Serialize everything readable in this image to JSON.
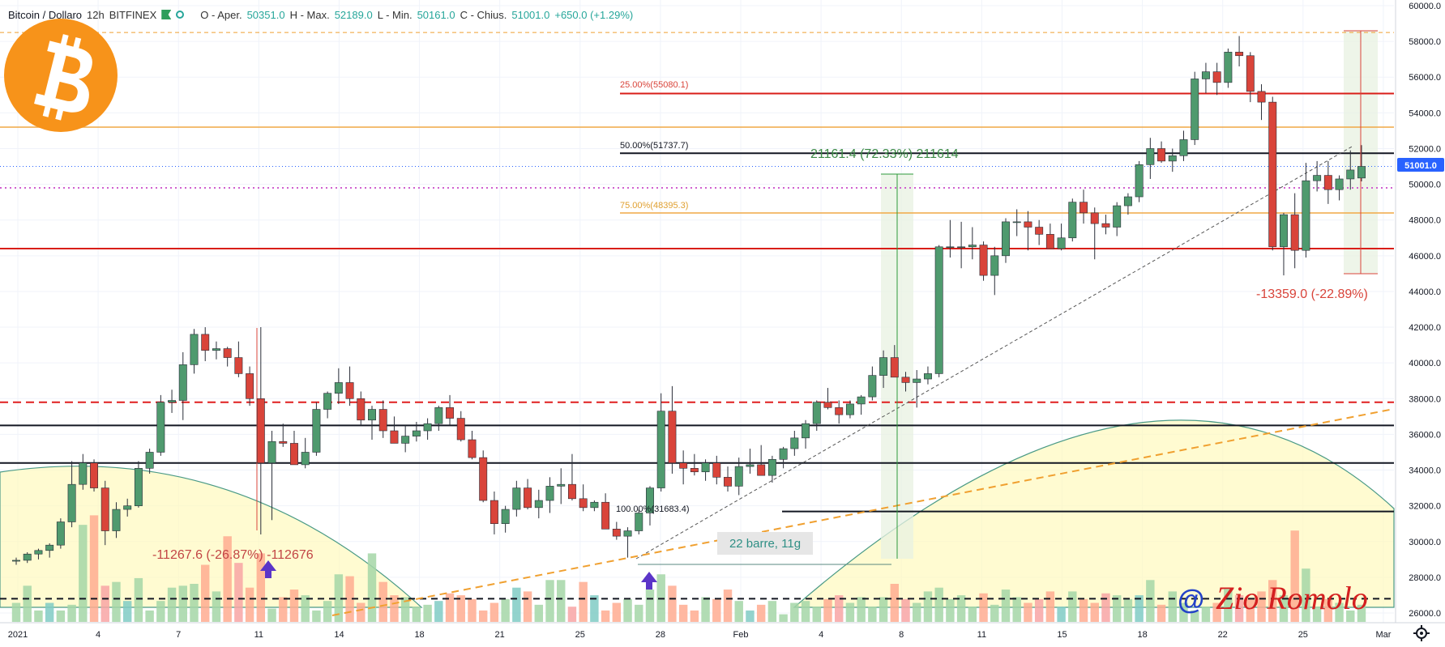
{
  "header": {
    "symbol": "Bitcoin / Dollaro",
    "interval": "12h",
    "exchange": "BITFINEX",
    "open_label": "O - Aper.",
    "open": "50351.0",
    "high_label": "H - Max.",
    "high": "52189.0",
    "low_label": "L - Min.",
    "low": "50161.0",
    "close_label": "C - Chius.",
    "close": "51001.0",
    "change": "+650.0 (+1.29%)"
  },
  "price_axis": {
    "ticks": [
      "60000.0",
      "58000.0",
      "56000.0",
      "54000.0",
      "52000.0",
      "50000.0",
      "48000.0",
      "46000.0",
      "44000.0",
      "42000.0",
      "40000.0",
      "38000.0",
      "36000.0",
      "34000.0",
      "32000.0",
      "30000.0",
      "28000.0",
      "26000.0"
    ],
    "last_price_tag": "51001.0"
  },
  "time_axis": {
    "labels": [
      "2021",
      "4",
      "7",
      "11",
      "14",
      "18",
      "21",
      "25",
      "28",
      "Feb",
      "4",
      "8",
      "11",
      "15",
      "18",
      "22",
      "25",
      "Mar"
    ]
  },
  "annotations": {
    "fib_25": "25.00%(55080.1)",
    "fib_50": "50.00%(51737.7)",
    "fib_75": "75.00%(48395.3)",
    "fib_100": "100.00%(31683.4)",
    "measure_up": "21161.4 (72.33%) 211614",
    "measure_down": "-13359.0 (-22.89%)",
    "measure_left": "-11267.6 (-26.87%) -112676",
    "bars_label": "22 barre, 11g",
    "watermark_at": "@",
    "watermark_name": "Zio Romolo"
  },
  "colors": {
    "up": "#26a69a",
    "down": "#ef5350",
    "up_body": "#4f9a6e",
    "down_body": "#d9443a",
    "vol_up": "#a5d6a7",
    "vol_down": "#ffab91",
    "vol_teal": "#80cbc4",
    "vol_pink": "#f8a5a5",
    "bitcoin_orange": "#f7931a"
  },
  "chart_data": {
    "type": "candlestick",
    "interval": "12h",
    "x_labels": [
      "2021",
      "4",
      "7",
      "11",
      "14",
      "18",
      "21",
      "25",
      "28",
      "Feb",
      "4",
      "8",
      "11",
      "15",
      "18",
      "22",
      "25",
      "Mar"
    ],
    "ylim": [
      26000,
      60000
    ],
    "candles": [
      [
        28900,
        29100,
        28700,
        28950
      ],
      [
        28950,
        29400,
        28800,
        29300
      ],
      [
        29300,
        29600,
        29000,
        29500
      ],
      [
        29500,
        29900,
        29100,
        29800
      ],
      [
        29800,
        31300,
        29600,
        31100
      ],
      [
        31100,
        34500,
        30800,
        33200
      ],
      [
        33200,
        34900,
        32900,
        34400
      ],
      [
        34400,
        34600,
        32800,
        33000
      ],
      [
        33000,
        33400,
        29800,
        30600
      ],
      [
        30600,
        32200,
        30200,
        31800
      ],
      [
        31800,
        32400,
        31400,
        32000
      ],
      [
        32000,
        34500,
        31900,
        34100
      ],
      [
        34100,
        35200,
        33800,
        35000
      ],
      [
        35000,
        38200,
        34800,
        37800
      ],
      [
        37800,
        38500,
        37200,
        37900
      ],
      [
        37900,
        40600,
        36800,
        39900
      ],
      [
        39900,
        41900,
        39400,
        41600
      ],
      [
        41600,
        42000,
        40100,
        40700
      ],
      [
        40700,
        41200,
        40200,
        40800
      ],
      [
        40800,
        40900,
        39800,
        40300
      ],
      [
        40300,
        41200,
        39200,
        39400
      ],
      [
        39400,
        39800,
        37600,
        38000
      ],
      [
        38000,
        42000,
        30400,
        34400
      ],
      [
        34400,
        36200,
        31200,
        35600
      ],
      [
        35600,
        36600,
        35300,
        35500
      ],
      [
        35500,
        36200,
        34300,
        34300
      ],
      [
        34300,
        35800,
        34100,
        35000
      ],
      [
        35000,
        37800,
        34800,
        37400
      ],
      [
        37400,
        38400,
        36900,
        38300
      ],
      [
        38300,
        39700,
        37700,
        38900
      ],
      [
        38900,
        39800,
        37600,
        38000
      ],
      [
        38000,
        38400,
        36500,
        36800
      ],
      [
        36800,
        37600,
        35700,
        37400
      ],
      [
        37400,
        37900,
        35800,
        36200
      ],
      [
        36200,
        37000,
        35500,
        35500
      ],
      [
        35500,
        36500,
        35000,
        35900
      ],
      [
        35900,
        36700,
        35600,
        36200
      ],
      [
        36200,
        36900,
        35700,
        36600
      ],
      [
        36600,
        37600,
        36200,
        37500
      ],
      [
        37500,
        38200,
        36500,
        36900
      ],
      [
        36900,
        37300,
        35600,
        35700
      ],
      [
        35700,
        36200,
        34600,
        34700
      ],
      [
        34700,
        35100,
        32200,
        32300
      ],
      [
        32300,
        32800,
        30400,
        31000
      ],
      [
        31000,
        32000,
        30500,
        31800
      ],
      [
        31800,
        33400,
        31400,
        33000
      ],
      [
        33000,
        33500,
        31800,
        31900
      ],
      [
        31900,
        32900,
        31300,
        32300
      ],
      [
        32300,
        33600,
        31600,
        33100
      ],
      [
        33100,
        34100,
        32100,
        33200
      ],
      [
        33200,
        34900,
        32300,
        32400
      ],
      [
        32400,
        33200,
        31700,
        31900
      ],
      [
        31900,
        32300,
        31700,
        32200
      ],
      [
        32200,
        32700,
        30700,
        30700
      ],
      [
        30700,
        31100,
        30100,
        30300
      ],
      [
        30300,
        30800,
        29100,
        30600
      ],
      [
        30600,
        31800,
        30400,
        31600
      ],
      [
        31600,
        33100,
        30900,
        33000
      ],
      [
        33000,
        38300,
        32800,
        37300
      ],
      [
        37300,
        38700,
        33800,
        34400
      ],
      [
        34400,
        35100,
        33200,
        34100
      ],
      [
        34100,
        34900,
        33700,
        33900
      ],
      [
        33900,
        34600,
        33400,
        34400
      ],
      [
        34400,
        34800,
        33200,
        33600
      ],
      [
        33600,
        34200,
        32800,
        33100
      ],
      [
        33100,
        34700,
        32600,
        34200
      ],
      [
        34200,
        35200,
        33800,
        34300
      ],
      [
        34300,
        35400,
        33800,
        33700
      ],
      [
        33700,
        34800,
        33300,
        34600
      ],
      [
        34600,
        35300,
        34100,
        35200
      ],
      [
        35200,
        36200,
        34800,
        35800
      ],
      [
        35800,
        36800,
        35200,
        36600
      ],
      [
        36600,
        37900,
        36200,
        37800
      ],
      [
        37800,
        38600,
        37400,
        37500
      ],
      [
        37500,
        37900,
        36600,
        37100
      ],
      [
        37100,
        37900,
        36900,
        37700
      ],
      [
        37700,
        38200,
        37100,
        38100
      ],
      [
        38100,
        39800,
        37900,
        39300
      ],
      [
        39300,
        40700,
        38600,
        40300
      ],
      [
        40300,
        41000,
        39300,
        39200
      ],
      [
        39200,
        39500,
        38400,
        38900
      ],
      [
        38900,
        39600,
        37500,
        39100
      ],
      [
        39100,
        39800,
        38800,
        39400
      ],
      [
        39400,
        46600,
        39200,
        46500
      ],
      [
        46500,
        48000,
        45900,
        46500
      ],
      [
        46500,
        47900,
        45300,
        46500
      ],
      [
        46500,
        47600,
        45800,
        46600
      ],
      [
        46600,
        46800,
        44600,
        44900
      ],
      [
        44900,
        46500,
        43800,
        46000
      ],
      [
        46000,
        48100,
        45600,
        47900
      ],
      [
        47900,
        48600,
        47100,
        47900
      ],
      [
        47900,
        48500,
        46300,
        47600
      ],
      [
        47600,
        48000,
        46600,
        47200
      ],
      [
        47200,
        47800,
        46400,
        46400
      ],
      [
        46400,
        47800,
        46300,
        47000
      ],
      [
        47000,
        49200,
        46800,
        49000
      ],
      [
        49000,
        49700,
        47800,
        48400
      ],
      [
        48400,
        48700,
        45800,
        47800
      ],
      [
        47800,
        48300,
        47200,
        47600
      ],
      [
        47600,
        49000,
        47100,
        48800
      ],
      [
        48800,
        49500,
        48300,
        49300
      ],
      [
        49300,
        51300,
        49000,
        51100
      ],
      [
        51100,
        52600,
        50300,
        52000
      ],
      [
        52000,
        52400,
        51200,
        51300
      ],
      [
        51300,
        52000,
        50700,
        51600
      ],
      [
        51600,
        53000,
        51300,
        52500
      ],
      [
        52500,
        56300,
        52200,
        55900
      ],
      [
        55900,
        56800,
        55100,
        56300
      ],
      [
        56300,
        56800,
        55000,
        55700
      ],
      [
        55700,
        57600,
        55400,
        57400
      ],
      [
        57400,
        58300,
        56600,
        57200
      ],
      [
        57200,
        57400,
        54600,
        55200
      ],
      [
        55200,
        55600,
        53600,
        54600
      ],
      [
        54600,
        54900,
        46300,
        46500
      ],
      [
        46500,
        48400,
        44900,
        48300
      ],
      [
        48300,
        49500,
        45300,
        46300
      ],
      [
        46300,
        51200,
        45900,
        50200
      ],
      [
        50200,
        51300,
        49600,
        50500
      ],
      [
        50500,
        51300,
        48900,
        49700
      ],
      [
        49700,
        50500,
        49100,
        50300
      ],
      [
        50300,
        51900,
        49700,
        50800
      ],
      [
        50351,
        52189,
        50161,
        51001
      ]
    ],
    "volume_ylim": [
      0,
      100
    ],
    "volumes": [
      10,
      19,
      6,
      10,
      6,
      9,
      51,
      56,
      19,
      21,
      11,
      23,
      6,
      11,
      18,
      19,
      20,
      30,
      16,
      45,
      31,
      18,
      36,
      7,
      13,
      17,
      14,
      6,
      11,
      25,
      24,
      10,
      36,
      21,
      14,
      13,
      8,
      9,
      11,
      15,
      14,
      12,
      6,
      10,
      12,
      18,
      16,
      9,
      22,
      22,
      8,
      21,
      14,
      6,
      10,
      12,
      9,
      17,
      25,
      19,
      9,
      6,
      13,
      12,
      17,
      11,
      6,
      9,
      11,
      4,
      10,
      11,
      8,
      12,
      14,
      10,
      13,
      8,
      13,
      20,
      12,
      10,
      16,
      18,
      12,
      14,
      8,
      15,
      9,
      17,
      13,
      10,
      12,
      16,
      8,
      16,
      12,
      10,
      15,
      14,
      12,
      14,
      22,
      9,
      16,
      10,
      6,
      8,
      10,
      18,
      14,
      12,
      16,
      22,
      14,
      48,
      28,
      8,
      12,
      10,
      6,
      9,
      10
    ],
    "horizontal_levels": [
      {
        "price": 58500,
        "style": "dashed-orange"
      },
      {
        "price": 55080.1,
        "style": "solid-red"
      },
      {
        "price": 53200,
        "style": "solid-orange"
      },
      {
        "price": 51737.7,
        "style": "solid-black"
      },
      {
        "price": 51001.0,
        "style": "dotted-blue"
      },
      {
        "price": 49800,
        "style": "dotted-pink"
      },
      {
        "price": 48395.3,
        "style": "solid-orange"
      },
      {
        "price": 46400,
        "style": "solid-red"
      },
      {
        "price": 37800,
        "style": "dashed-red"
      },
      {
        "price": 36500,
        "style": "solid-black"
      },
      {
        "price": 34400,
        "style": "solid-black"
      },
      {
        "price": 31683.4,
        "style": "solid-black"
      },
      {
        "price": 26800,
        "style": "dashed-black"
      }
    ]
  }
}
